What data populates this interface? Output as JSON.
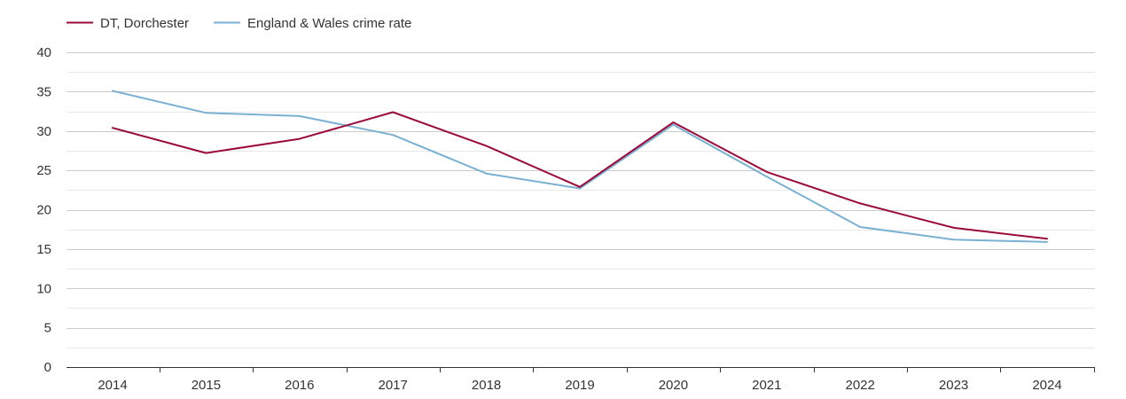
{
  "chart_data": {
    "type": "line",
    "title": "",
    "xlabel": "",
    "ylabel": "",
    "x": [
      "2014",
      "2015",
      "2016",
      "2017",
      "2018",
      "2019",
      "2020",
      "2021",
      "2022",
      "2023",
      "2024"
    ],
    "series": [
      {
        "name": "DT, Dorchester",
        "color": "#9b0a3a",
        "values": [
          30.4,
          27.2,
          29.0,
          32.4,
          28.1,
          22.9,
          31.1,
          24.8,
          20.8,
          17.7,
          16.3
        ]
      },
      {
        "name": "England & Wales crime rate",
        "color": "#7ab0d1",
        "values": [
          35.1,
          32.3,
          31.9,
          29.5,
          24.6,
          22.7,
          30.8,
          24.2,
          17.8,
          16.2,
          15.9
        ]
      }
    ],
    "ylim": [
      0,
      40
    ],
    "yticks": [
      "0",
      "5",
      "10",
      "15",
      "20",
      "25",
      "30",
      "35",
      "40"
    ],
    "grid": true,
    "legend_position": "top-left"
  }
}
